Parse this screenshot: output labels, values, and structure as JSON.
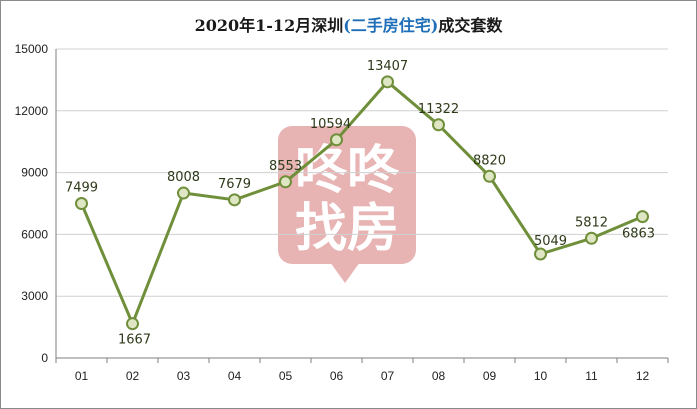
{
  "title": {
    "prefix": "2020年1-12月深圳",
    "highlight": "(二手房住宅)",
    "suffix": "成交套数"
  },
  "watermark": {
    "line1": "咚咚",
    "line2": "找房"
  },
  "colors": {
    "line": "#6f8f3a",
    "marker_fill": "#dfe6c4",
    "grid": "#d0d0d0",
    "axis": "#7f7f7f",
    "watermark": "#e8b3b3",
    "title_highlight": "#1f6fb8"
  },
  "chart_data": {
    "type": "line",
    "title": "2020年1-12月深圳(二手房住宅)成交套数",
    "categories": [
      "01",
      "02",
      "03",
      "04",
      "05",
      "06",
      "07",
      "08",
      "09",
      "10",
      "11",
      "12"
    ],
    "values": [
      7499,
      1667,
      8008,
      7679,
      8553,
      10594,
      13407,
      11322,
      8820,
      5049,
      5812,
      6863
    ],
    "yticks": [
      "0",
      "3000",
      "6000",
      "9000",
      "12000",
      "15000"
    ],
    "ylim": [
      0,
      15000
    ],
    "grid": true,
    "legend": "none",
    "data_labels": [
      "7499",
      "1667",
      "8008",
      "7679",
      "8553",
      "10594",
      "13407",
      "11322",
      "8820",
      "5049",
      "5812",
      "6863"
    ]
  }
}
